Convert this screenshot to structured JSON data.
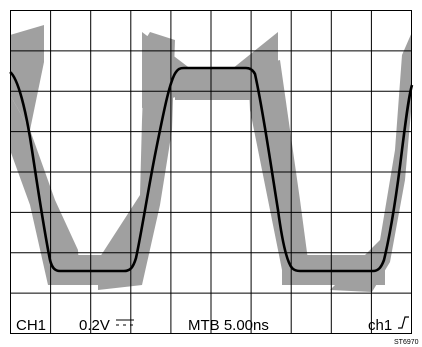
{
  "status_bar": {
    "channel": "CH1",
    "volts_per_div": "0.2V",
    "coupling_icon": "dc-coupling-icon",
    "timebase": "MTB 5.00ns",
    "trigger": "ch1",
    "trigger_slope_icon": "rising-edge-icon"
  },
  "reference_code": "ST6970",
  "display": {
    "divisions_x": 10,
    "divisions_y": 8,
    "grid_color": "#000000",
    "envelope_color": "#a0a0a0",
    "trace_color": "#000000"
  }
}
